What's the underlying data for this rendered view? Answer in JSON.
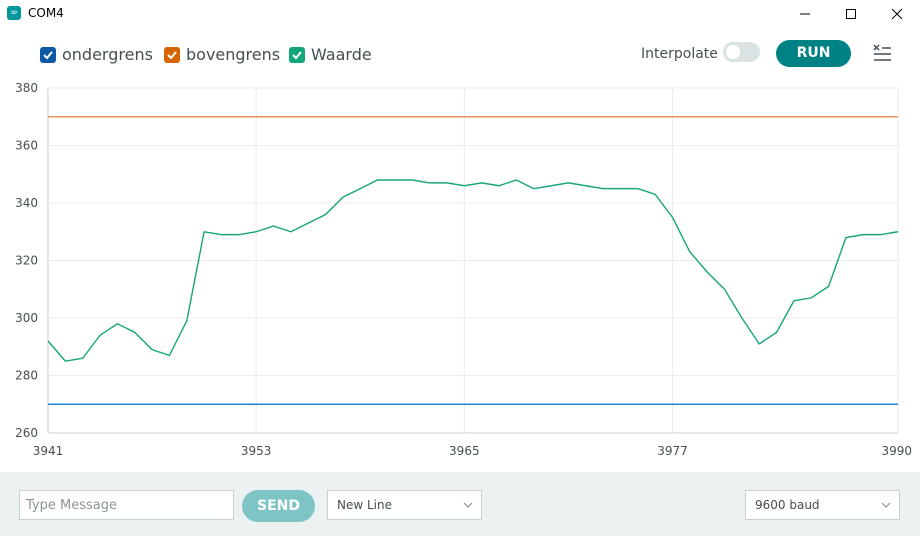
{
  "window": {
    "title": "COM4",
    "icon": "arduino-icon"
  },
  "legend": [
    {
      "label": "ondergrens",
      "color": "#0c5aa6",
      "checked": true
    },
    {
      "label": "bovengrens",
      "color": "#d66400",
      "checked": true
    },
    {
      "label": "Waarde",
      "color": "#11a77a",
      "checked": true
    }
  ],
  "controls": {
    "interpolate_label": "Interpolate",
    "interpolate_on": false,
    "run_label": "RUN",
    "clear_icon": "clear-list-icon"
  },
  "chart_data": {
    "type": "line",
    "xlim": [
      3941,
      3990
    ],
    "ylim": [
      260,
      380
    ],
    "x_ticks": [
      3941,
      3953,
      3965,
      3977,
      3990
    ],
    "y_ticks": [
      260,
      280,
      300,
      320,
      340,
      360,
      380
    ],
    "grid": true,
    "series": [
      {
        "name": "ondergrens",
        "color": "#1f86c9",
        "x": [
          3941,
          3990
        ],
        "values": [
          270,
          270
        ]
      },
      {
        "name": "bovengrens",
        "color": "#e9925a",
        "x": [
          3941,
          3990
        ],
        "values": [
          370,
          370
        ]
      },
      {
        "name": "Waarde",
        "color": "#17a57b",
        "x": [
          3941,
          3942,
          3943,
          3944,
          3945,
          3946,
          3947,
          3948,
          3949,
          3950,
          3951,
          3952,
          3953,
          3954,
          3955,
          3956,
          3957,
          3958,
          3959,
          3960,
          3961,
          3962,
          3963,
          3964,
          3965,
          3966,
          3967,
          3968,
          3969,
          3970,
          3971,
          3972,
          3973,
          3974,
          3975,
          3976,
          3977,
          3978,
          3979,
          3980,
          3981,
          3982,
          3983,
          3984,
          3985,
          3986,
          3987,
          3988,
          3989,
          3990
        ],
        "values": [
          292,
          285,
          286,
          294,
          298,
          295,
          289,
          287,
          299,
          330,
          329,
          329,
          330,
          332,
          330,
          333,
          336,
          342,
          345,
          348,
          348,
          348,
          347,
          347,
          346,
          347,
          346,
          348,
          345,
          346,
          347,
          346,
          345,
          345,
          345,
          343,
          335,
          323,
          316,
          310,
          300,
          291,
          295,
          306,
          307,
          311,
          328,
          329,
          329,
          330
        ]
      }
    ]
  },
  "bottom": {
    "message_placeholder": "Type Message",
    "send_label": "SEND",
    "line_ending": "New Line",
    "baud": "9600 baud"
  }
}
